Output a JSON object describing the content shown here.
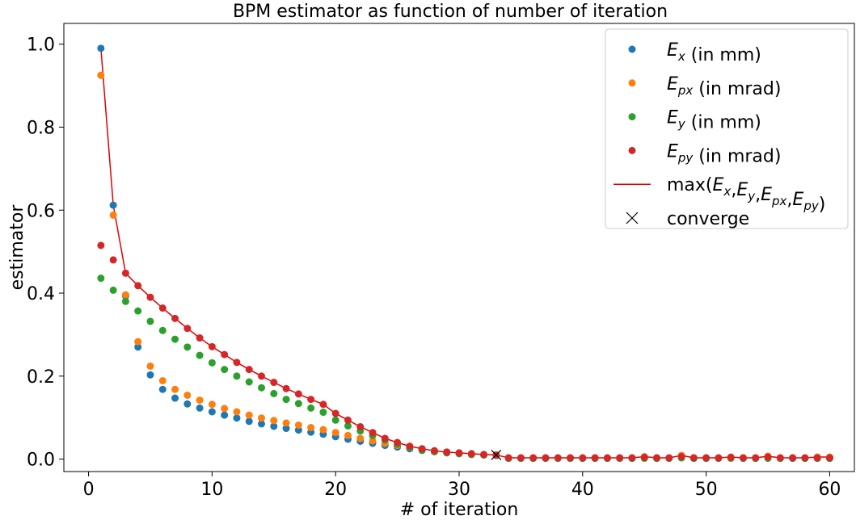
{
  "chart_data": {
    "type": "scatter",
    "title": "BPM estimator as function of number of iteration",
    "xlabel": "# of iteration",
    "ylabel": "estimator",
    "xlim": [
      -2,
      62
    ],
    "ylim": [
      -0.03,
      1.05
    ],
    "xticks": [
      0,
      10,
      20,
      30,
      40,
      50,
      60
    ],
    "yticks": [
      0.0,
      0.2,
      0.4,
      0.6,
      0.8,
      1.0
    ],
    "grid": false,
    "legend_position": "top-right",
    "x": [
      1,
      2,
      3,
      4,
      5,
      6,
      7,
      8,
      9,
      10,
      11,
      12,
      13,
      14,
      15,
      16,
      17,
      18,
      19,
      20,
      21,
      22,
      23,
      24,
      25,
      26,
      27,
      28,
      29,
      30,
      31,
      32,
      33,
      34,
      35,
      36,
      37,
      38,
      39,
      40,
      41,
      42,
      43,
      44,
      45,
      46,
      47,
      48,
      49,
      50,
      51,
      52,
      53,
      54,
      55,
      56,
      57,
      58,
      59,
      60
    ],
    "series": [
      {
        "name": "E_x (in mm)",
        "label_main": "E",
        "label_sub": "x",
        "label_suffix": " (in mm)",
        "marker": "dot",
        "color": "#1f77b4",
        "values": [
          0.99,
          0.612,
          0.393,
          0.27,
          0.203,
          0.168,
          0.147,
          0.133,
          0.123,
          0.114,
          0.106,
          0.099,
          0.091,
          0.085,
          0.079,
          0.074,
          0.07,
          0.065,
          0.06,
          0.054,
          0.048,
          0.043,
          0.038,
          0.033,
          0.029,
          0.025,
          0.021,
          0.018,
          0.016,
          0.014,
          0.012,
          0.01,
          0.009,
          0.002,
          0.002,
          0.002,
          0.002,
          0.002,
          0.002,
          0.002,
          0.002,
          0.002,
          0.002,
          0.002,
          0.004,
          0.002,
          0.002,
          0.006,
          0.002,
          0.002,
          0.002,
          0.003,
          0.002,
          0.002,
          0.004,
          0.002,
          0.002,
          0.002,
          0.002,
          0.002
        ]
      },
      {
        "name": "E_px (in mrad)",
        "label_main": "E",
        "label_sub": "px",
        "label_suffix": " (in mrad)",
        "marker": "dot",
        "color": "#ff7f0e",
        "values": [
          0.925,
          0.588,
          0.396,
          0.283,
          0.224,
          0.189,
          0.168,
          0.154,
          0.142,
          0.132,
          0.122,
          0.114,
          0.106,
          0.099,
          0.093,
          0.087,
          0.082,
          0.076,
          0.071,
          0.064,
          0.057,
          0.05,
          0.044,
          0.038,
          0.033,
          0.028,
          0.024,
          0.02,
          0.017,
          0.015,
          0.013,
          0.011,
          0.01,
          0.003,
          0.003,
          0.003,
          0.003,
          0.003,
          0.003,
          0.003,
          0.003,
          0.003,
          0.003,
          0.003,
          0.006,
          0.003,
          0.003,
          0.009,
          0.003,
          0.003,
          0.003,
          0.005,
          0.003,
          0.003,
          0.007,
          0.003,
          0.003,
          0.003,
          0.005,
          0.005
        ]
      },
      {
        "name": "E_y (in mm)",
        "label_main": "E",
        "label_sub": "y",
        "label_suffix": " (in mm)",
        "marker": "dot",
        "color": "#2ca02c",
        "values": [
          0.436,
          0.407,
          0.38,
          0.357,
          0.332,
          0.31,
          0.289,
          0.27,
          0.25,
          0.232,
          0.216,
          0.2,
          0.186,
          0.172,
          0.158,
          0.144,
          0.134,
          0.123,
          0.113,
          0.094,
          0.08,
          0.068,
          0.057,
          0.046,
          0.036,
          0.028,
          0.022,
          0.018,
          0.015,
          0.013,
          0.011,
          0.01,
          0.009,
          0.002,
          0.002,
          0.002,
          0.002,
          0.002,
          0.002,
          0.002,
          0.002,
          0.002,
          0.002,
          0.002,
          0.002,
          0.002,
          0.002,
          0.003,
          0.002,
          0.002,
          0.002,
          0.002,
          0.002,
          0.002,
          0.002,
          0.002,
          0.002,
          0.002,
          0.002,
          0.002
        ]
      },
      {
        "name": "E_py (in mrad)",
        "label_main": "E",
        "label_sub": "py",
        "label_suffix": " (in mrad)",
        "marker": "dot",
        "color": "#d62728",
        "values": [
          0.515,
          0.48,
          0.448,
          0.418,
          0.39,
          0.364,
          0.339,
          0.315,
          0.292,
          0.271,
          0.252,
          0.233,
          0.216,
          0.2,
          0.185,
          0.17,
          0.157,
          0.144,
          0.132,
          0.11,
          0.094,
          0.078,
          0.064,
          0.05,
          0.04,
          0.031,
          0.025,
          0.02,
          0.017,
          0.015,
          0.013,
          0.011,
          0.01,
          0.003,
          0.003,
          0.003,
          0.003,
          0.003,
          0.003,
          0.003,
          0.003,
          0.003,
          0.003,
          0.003,
          0.004,
          0.003,
          0.003,
          0.006,
          0.003,
          0.003,
          0.003,
          0.004,
          0.003,
          0.003,
          0.005,
          0.003,
          0.003,
          0.003,
          0.003,
          0.003
        ]
      },
      {
        "name": "max(E_x,E_y,E_px,E_py)",
        "label_prefix": "max(",
        "label_terms": [
          {
            "main": "E",
            "sub": "x"
          },
          {
            "main": "E",
            "sub": "y"
          },
          {
            "main": "E",
            "sub": "px"
          },
          {
            "main": "E",
            "sub": "py"
          }
        ],
        "label_suffix": ")",
        "marker": "line",
        "color": "#e00000",
        "values": [
          0.99,
          0.612,
          0.448,
          0.418,
          0.39,
          0.364,
          0.339,
          0.315,
          0.292,
          0.271,
          0.252,
          0.233,
          0.216,
          0.2,
          0.185,
          0.17,
          0.157,
          0.144,
          0.132,
          0.11,
          0.094,
          0.078,
          0.064,
          0.05,
          0.04,
          0.031,
          0.025,
          0.02,
          0.017,
          0.015,
          0.013,
          0.011,
          0.01,
          0.003,
          0.003,
          0.003,
          0.003,
          0.003,
          0.003,
          0.003,
          0.003,
          0.003,
          0.003,
          0.003,
          0.006,
          0.003,
          0.003,
          0.009,
          0.003,
          0.003,
          0.003,
          0.005,
          0.003,
          0.003,
          0.007,
          0.003,
          0.003,
          0.003,
          0.005,
          0.005
        ]
      }
    ],
    "converge": {
      "name": "converge",
      "label": "converge",
      "marker": "x",
      "color": "#000000",
      "x": 33,
      "y": 0.01
    }
  }
}
